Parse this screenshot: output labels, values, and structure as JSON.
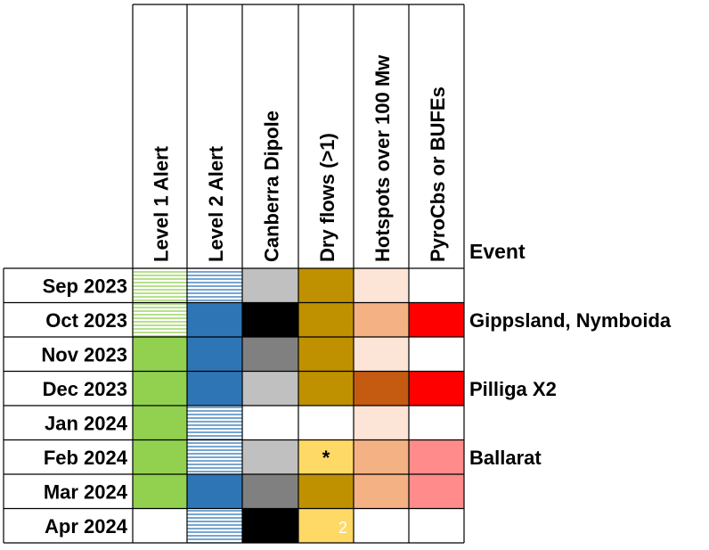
{
  "chart_data": {
    "type": "heatmap",
    "columns": [
      "Level 1 Alert",
      "Level 2 Alert",
      "Canberra Dipole",
      "Dry flows (>1)",
      "Hotspots over 100 Mw",
      "PyroCbs or BUFEs"
    ],
    "rows": [
      "Sep 2023",
      "Oct 2023",
      "Nov 2023",
      "Dec 2023",
      "Jan 2024",
      "Feb 2024",
      "Mar 2024",
      "Apr 2024"
    ],
    "event_header": "Event",
    "cells": [
      [
        "green-hatch",
        "blue-hatch",
        "#c0c0c0",
        "#bf9000",
        "#fce4d6",
        "#ffffff"
      ],
      [
        "green-hatch",
        "#2e75b6",
        "#000000",
        "#bf9000",
        "#f4b183",
        "#ff0000"
      ],
      [
        "#92d050",
        "#2e75b6",
        "#808080",
        "#bf9000",
        "#fce4d6",
        "#ffffff"
      ],
      [
        "#92d050",
        "#2e75b6",
        "#c0c0c0",
        "#bf9000",
        "#c55a11",
        "#ff0000"
      ],
      [
        "#92d050",
        "blue-hatch",
        "#ffffff",
        "#ffffff",
        "#fce4d6",
        "#ffffff"
      ],
      [
        "#92d050",
        "blue-hatch",
        "#c0c0c0",
        "#ffd966",
        "#f4b183",
        "#ff8b8b"
      ],
      [
        "#92d050",
        "#2e75b6",
        "#808080",
        "#bf9000",
        "#f4b183",
        "#ff8b8b"
      ],
      [
        "#ffffff",
        "blue-hatch",
        "#000000",
        "#ffd966",
        "#ffffff",
        "#ffffff"
      ]
    ],
    "cell_marks": [
      {
        "row": 5,
        "col": 3,
        "text": "*",
        "color": "#000000"
      },
      {
        "row": 7,
        "col": 3,
        "text": "2",
        "color": "#ffffff"
      }
    ],
    "events": [
      "",
      "Gippsland, Nymboida",
      "",
      "Pilliga X2",
      "",
      "Ballarat",
      "",
      ""
    ],
    "colors": {
      "green_solid": "#92d050",
      "green_hatch_line": "#92d050",
      "blue_solid": "#2e75b6",
      "blue_hatch_line": "#2e75b6"
    }
  }
}
